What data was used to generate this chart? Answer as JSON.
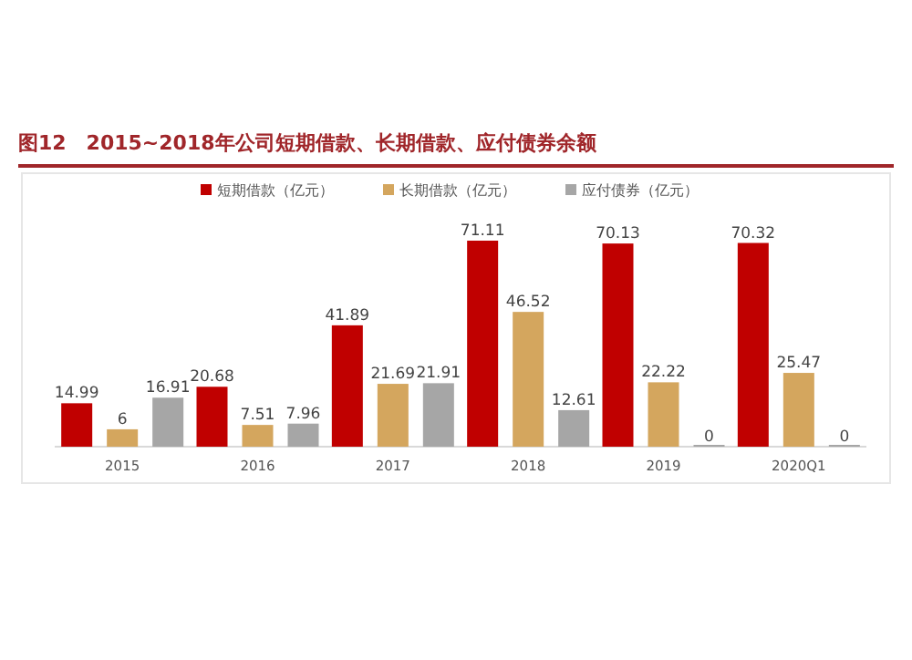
{
  "chart_data": {
    "type": "bar",
    "title": "图12　2015~2018年公司短期借款、长期借款、应付债券余额",
    "categories": [
      "2015",
      "2016",
      "2017",
      "2018",
      "2019",
      "2020Q1"
    ],
    "series": [
      {
        "name": "短期借款（亿元）",
        "color": "#c00000",
        "values": [
          14.99,
          20.68,
          41.89,
          71.11,
          70.13,
          70.32
        ]
      },
      {
        "name": "长期借款（亿元）",
        "color": "#d4a65e",
        "values": [
          6,
          7.51,
          21.69,
          46.52,
          22.22,
          25.47
        ]
      },
      {
        "name": "应付债券（亿元）",
        "color": "#a6a6a6",
        "values": [
          16.91,
          7.96,
          21.91,
          12.61,
          0,
          0
        ]
      }
    ],
    "data_labels": true,
    "legend": "top",
    "grid": false
  }
}
